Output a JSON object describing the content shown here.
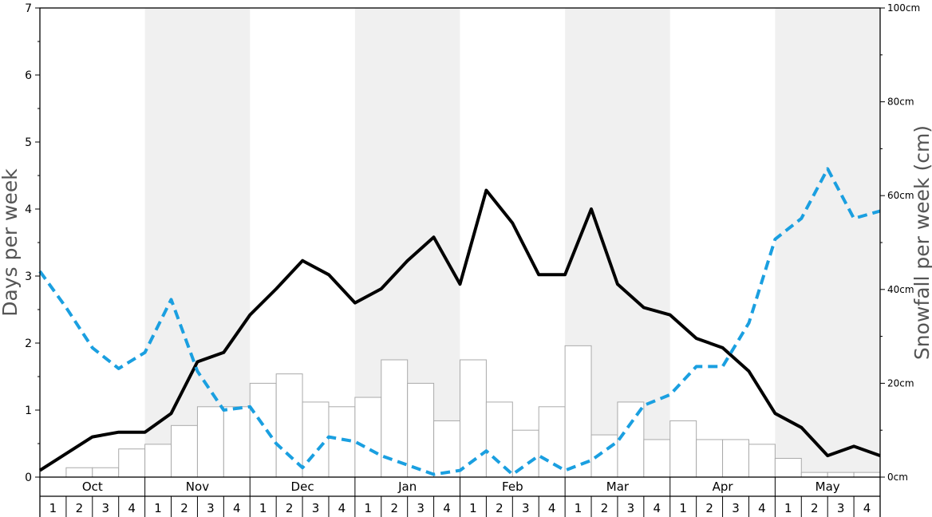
{
  "chart_data": {
    "type": "bar",
    "y_left": {
      "label": "Days per week",
      "range": [
        0,
        7
      ],
      "ticks": [
        "0",
        "1",
        "2",
        "3",
        "4",
        "5",
        "6",
        "7"
      ]
    },
    "y_right": {
      "label": "Snowfall per week (cm)",
      "range": [
        0,
        100
      ],
      "ticks": [
        "0cm",
        "20cm",
        "40cm",
        "60cm",
        "80cm",
        "100cm"
      ]
    },
    "months": [
      "Oct",
      "Nov",
      "Dec",
      "Jan",
      "Feb",
      "Mar",
      "Apr",
      "May"
    ],
    "weeks": [
      "1",
      "2",
      "3",
      "4"
    ],
    "shaded_months": [
      "Nov",
      "Jan",
      "Mar",
      "May"
    ],
    "series": [
      {
        "kind": "bar",
        "axis": "right",
        "values": [
          0,
          2,
          2,
          6,
          7,
          11,
          15,
          15,
          20,
          22,
          16,
          15,
          17,
          25,
          20,
          12,
          25,
          16,
          10,
          15,
          28,
          9,
          16,
          8,
          12,
          8,
          8,
          7,
          4,
          1,
          1,
          1
        ]
      },
      {
        "kind": "line",
        "axis": "left",
        "style": "solid",
        "color": "#000000",
        "values": [
          0.1,
          0.35,
          0.6,
          0.67,
          0.67,
          0.95,
          1.72,
          1.86,
          2.42,
          2.81,
          3.23,
          3.02,
          2.6,
          2.81,
          3.23,
          3.58,
          2.88,
          4.28,
          3.79,
          3.02,
          3.02,
          4.0,
          2.88,
          2.53,
          2.42,
          2.07,
          1.93,
          1.58,
          0.95,
          0.74,
          0.32,
          0.46,
          0.32
        ]
      },
      {
        "kind": "line",
        "axis": "left",
        "style": "dashed",
        "color": "#1a9fe0",
        "values": [
          3.07,
          2.53,
          1.93,
          1.62,
          1.86,
          2.65,
          1.58,
          1.0,
          1.05,
          0.5,
          0.14,
          0.6,
          0.53,
          0.32,
          0.18,
          0.04,
          0.1,
          0.39,
          0.04,
          0.32,
          0.1,
          0.25,
          0.53,
          1.07,
          1.23,
          1.65,
          1.65,
          2.3,
          3.55,
          3.86,
          4.6,
          3.86,
          3.97
        ]
      }
    ],
    "grid": false
  }
}
